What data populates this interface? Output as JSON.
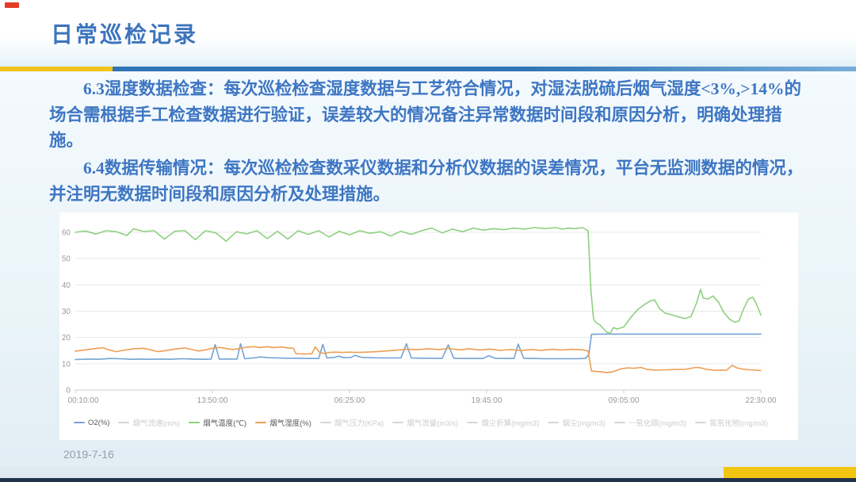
{
  "slide": {
    "title": "日常巡检记录",
    "paragraphs": [
      "6.3湿度数据检查：每次巡检检查湿度数据与工艺符合情况，对湿法脱硫后烟气湿度<3%,>14%的场合需根据手工检查数据进行验证，误差较大的情况备注异常数据时间段和原因分析，明确处理措施。",
      "6.4数据传输情况：每次巡检检查数采仪数据和分析仪数据的误差情况，平台无监测数据的情况，并注明无数据时间段和原因分析及处理措施。"
    ],
    "date": "2019-7-16",
    "accent_colors": {
      "title_blue": "#3c74bd",
      "divider_yellow": "#f0c419",
      "divider_blue": "#2f74b5",
      "footer_navy": "#22334d",
      "footer_yellow": "#f2c511"
    }
  },
  "chart_data": {
    "type": "line",
    "title": "",
    "xlabel": "",
    "ylabel": "",
    "ylim": [
      0,
      65
    ],
    "yticks": [
      0,
      10,
      20,
      30,
      40,
      50,
      60
    ],
    "grid": true,
    "legend_position": "bottom",
    "xticks": [
      {
        "frac": 0,
        "label": "00:10:00"
      },
      {
        "frac": 20,
        "label": "13:50:00"
      },
      {
        "frac": 40,
        "label": "06:25:00"
      },
      {
        "frac": 60,
        "label": "19:45:00"
      },
      {
        "frac": 80,
        "label": "09:05:00"
      },
      {
        "frac": 100,
        "label": "22:30:00"
      }
    ],
    "series": [
      {
        "id": "o2",
        "name": "O2(%)",
        "color": "#74a3d4",
        "points": [
          [
            0,
            11.6
          ],
          [
            2,
            11.8
          ],
          [
            3.5,
            11.7
          ],
          [
            5,
            12.0
          ],
          [
            6.5,
            11.9
          ],
          [
            8,
            11.7
          ],
          [
            9.5,
            11.8
          ],
          [
            11,
            11.7
          ],
          [
            12.5,
            11.8
          ],
          [
            14,
            11.7
          ],
          [
            15.5,
            11.9
          ],
          [
            17,
            11.8
          ],
          [
            18.5,
            11.7
          ],
          [
            19.8,
            11.8
          ],
          [
            20.4,
            17.3
          ],
          [
            21,
            11.8
          ],
          [
            22.5,
            11.8
          ],
          [
            23.6,
            11.8
          ],
          [
            24.1,
            17.6
          ],
          [
            24.7,
            11.9
          ],
          [
            26,
            12.2
          ],
          [
            27,
            12.6
          ],
          [
            28,
            12.3
          ],
          [
            29.5,
            12.2
          ],
          [
            31,
            12.1
          ],
          [
            32.5,
            12.1
          ],
          [
            34,
            12.0
          ],
          [
            35.5,
            12.0
          ],
          [
            36.1,
            17.4
          ],
          [
            36.7,
            12.2
          ],
          [
            37.8,
            12.4
          ],
          [
            38.4,
            12.9
          ],
          [
            39.2,
            12.3
          ],
          [
            40.2,
            12.4
          ],
          [
            40.8,
            13.2
          ],
          [
            41.8,
            12.4
          ],
          [
            43,
            12.3
          ],
          [
            44.5,
            12.2
          ],
          [
            46,
            12.2
          ],
          [
            47.5,
            12.2
          ],
          [
            48.3,
            17.6
          ],
          [
            49,
            12.2
          ],
          [
            50.5,
            12.1
          ],
          [
            52,
            12.1
          ],
          [
            53.5,
            12.0
          ],
          [
            54.4,
            17.2
          ],
          [
            55.2,
            12.1
          ],
          [
            56.5,
            12.0
          ],
          [
            58,
            12.0
          ],
          [
            59.5,
            12.0
          ],
          [
            60.3,
            13.1
          ],
          [
            61.2,
            12.1
          ],
          [
            62.5,
            12.0
          ],
          [
            64,
            12.0
          ],
          [
            64.6,
            17.5
          ],
          [
            65.4,
            12.1
          ],
          [
            67,
            12.0
          ],
          [
            68.5,
            11.9
          ],
          [
            70,
            11.9
          ],
          [
            71.5,
            11.9
          ],
          [
            73,
            11.9
          ],
          [
            74.4,
            12.0
          ],
          [
            74.9,
            13.5
          ],
          [
            75.3,
            21.2
          ],
          [
            77,
            21.3
          ],
          [
            80,
            21.3
          ],
          [
            85,
            21.3
          ],
          [
            90,
            21.3
          ],
          [
            95,
            21.3
          ],
          [
            100,
            21.3
          ]
        ]
      },
      {
        "id": "temp",
        "name": "烟气温度(℃)",
        "color": "#8ed081",
        "points": [
          [
            0,
            60
          ],
          [
            1.5,
            60.5
          ],
          [
            3,
            59.3
          ],
          [
            4.5,
            60.6
          ],
          [
            6,
            60.2
          ],
          [
            7.5,
            58.8
          ],
          [
            8.5,
            61.3
          ],
          [
            10,
            60.3
          ],
          [
            11.5,
            60.6
          ],
          [
            13,
            57.4
          ],
          [
            14.5,
            60.4
          ],
          [
            16,
            60.6
          ],
          [
            17.5,
            57.2
          ],
          [
            19,
            60.6
          ],
          [
            20.5,
            59.8
          ],
          [
            22,
            56.6
          ],
          [
            23.5,
            60.2
          ],
          [
            25,
            59.4
          ],
          [
            26.5,
            60.6
          ],
          [
            28,
            57.6
          ],
          [
            29.5,
            60.4
          ],
          [
            31,
            57.4
          ],
          [
            32.5,
            60.6
          ],
          [
            34,
            59.2
          ],
          [
            35.5,
            60.6
          ],
          [
            37,
            58.2
          ],
          [
            38.5,
            60.4
          ],
          [
            40,
            59.0
          ],
          [
            41.5,
            60.6
          ],
          [
            43,
            59.6
          ],
          [
            44.5,
            60.2
          ],
          [
            46,
            58.6
          ],
          [
            47.5,
            60.4
          ],
          [
            49,
            59.2
          ],
          [
            50.5,
            60.6
          ],
          [
            52,
            61.6
          ],
          [
            53.5,
            59.8
          ],
          [
            55,
            61.2
          ],
          [
            56.5,
            60.2
          ],
          [
            58,
            61.6
          ],
          [
            59.5,
            60.8
          ],
          [
            61,
            61.4
          ],
          [
            62.5,
            61.0
          ],
          [
            64,
            61.6
          ],
          [
            65.5,
            61.2
          ],
          [
            67,
            61.8
          ],
          [
            68.5,
            61.4
          ],
          [
            70,
            61.8
          ],
          [
            71,
            61.2
          ],
          [
            72,
            61.6
          ],
          [
            73,
            61.4
          ],
          [
            74,
            61.8
          ],
          [
            74.8,
            60.5
          ],
          [
            75.2,
            38
          ],
          [
            75.6,
            27
          ],
          [
            76,
            25.5
          ],
          [
            76.5,
            24.8
          ],
          [
            77.5,
            22
          ],
          [
            78,
            21.5
          ],
          [
            78.5,
            23.8
          ],
          [
            79,
            23.2
          ],
          [
            80,
            24
          ],
          [
            81,
            27.5
          ],
          [
            82,
            30.5
          ],
          [
            83,
            32.5
          ],
          [
            83.8,
            33.8
          ],
          [
            84.5,
            34.3
          ],
          [
            85.2,
            31
          ],
          [
            86,
            29.3
          ],
          [
            87,
            28.6
          ],
          [
            88,
            27.8
          ],
          [
            89,
            27.2
          ],
          [
            89.8,
            28
          ],
          [
            90.6,
            33
          ],
          [
            91.2,
            38.3
          ],
          [
            91.6,
            35
          ],
          [
            92.3,
            34.6
          ],
          [
            93,
            35.8
          ],
          [
            93.8,
            33.5
          ],
          [
            94.6,
            29.5
          ],
          [
            95.4,
            27
          ],
          [
            96.2,
            25.8
          ],
          [
            96.8,
            26.3
          ],
          [
            97.5,
            31
          ],
          [
            98.2,
            34.6
          ],
          [
            98.8,
            35.3
          ],
          [
            99.3,
            33
          ],
          [
            99.7,
            30.5
          ],
          [
            100,
            28.5
          ]
        ]
      },
      {
        "id": "humidity",
        "name": "烟气湿度(%)",
        "color": "#ec9f54",
        "points": [
          [
            0,
            14.8
          ],
          [
            1.5,
            15.3
          ],
          [
            3,
            15.8
          ],
          [
            4,
            16.1
          ],
          [
            5,
            15.2
          ],
          [
            6,
            14.6
          ],
          [
            7,
            15.1
          ],
          [
            8.5,
            15.7
          ],
          [
            10,
            15.9
          ],
          [
            11,
            15.3
          ],
          [
            12,
            14.6
          ],
          [
            13,
            14.9
          ],
          [
            14.5,
            15.6
          ],
          [
            16,
            16.0
          ],
          [
            17,
            15.4
          ],
          [
            18,
            14.8
          ],
          [
            19,
            15.3
          ],
          [
            20,
            15.9
          ],
          [
            21,
            16.2
          ],
          [
            22,
            15.8
          ],
          [
            23,
            15.4
          ],
          [
            24,
            15.8
          ],
          [
            25,
            16.3
          ],
          [
            26,
            16.5
          ],
          [
            27,
            16.2
          ],
          [
            28,
            16.5
          ],
          [
            29,
            16.1
          ],
          [
            30,
            16.4
          ],
          [
            31,
            16.0
          ],
          [
            31.8,
            15.9
          ],
          [
            32.2,
            13.8
          ],
          [
            33.5,
            13.7
          ],
          [
            34.5,
            13.8
          ],
          [
            35,
            16.4
          ],
          [
            35.6,
            14.4
          ],
          [
            36.2,
            13.9
          ],
          [
            37,
            14.3
          ],
          [
            38,
            14.4
          ],
          [
            39,
            14.3
          ],
          [
            40,
            14.4
          ],
          [
            41,
            14.3
          ],
          [
            42.5,
            14.4
          ],
          [
            44,
            14.6
          ],
          [
            45.5,
            14.9
          ],
          [
            47,
            15.2
          ],
          [
            48.5,
            15.5
          ],
          [
            50,
            15.4
          ],
          [
            51.5,
            15.7
          ],
          [
            53,
            15.4
          ],
          [
            54.5,
            15.8
          ],
          [
            56,
            15.3
          ],
          [
            57.5,
            15.7
          ],
          [
            59,
            15.2
          ],
          [
            60.5,
            15.6
          ],
          [
            62,
            15.1
          ],
          [
            63.5,
            15.4
          ],
          [
            65,
            15.0
          ],
          [
            66.5,
            15.4
          ],
          [
            68,
            15.1
          ],
          [
            69.5,
            15.5
          ],
          [
            71,
            15.2
          ],
          [
            72.5,
            15.5
          ],
          [
            74,
            15.3
          ],
          [
            74.8,
            14.8
          ],
          [
            75.3,
            7.2
          ],
          [
            76.5,
            7.0
          ],
          [
            77.5,
            6.6
          ],
          [
            78.5,
            7.0
          ],
          [
            79.5,
            8.0
          ],
          [
            80.5,
            8.4
          ],
          [
            81.5,
            8.3
          ],
          [
            82.5,
            8.6
          ],
          [
            83.5,
            7.8
          ],
          [
            84.5,
            7.6
          ],
          [
            86,
            7.7
          ],
          [
            87.5,
            7.8
          ],
          [
            89,
            7.9
          ],
          [
            90.5,
            8.6
          ],
          [
            91.3,
            8.4
          ],
          [
            92,
            7.9
          ],
          [
            93,
            7.6
          ],
          [
            94,
            7.5
          ],
          [
            95,
            7.6
          ],
          [
            95.8,
            9.4
          ],
          [
            96.5,
            8.4
          ],
          [
            97.5,
            7.9
          ],
          [
            98.5,
            7.7
          ],
          [
            99.3,
            7.6
          ],
          [
            100,
            7.4
          ]
        ]
      }
    ],
    "legend": [
      {
        "label": "O2(%)",
        "color": "#74a3d4",
        "active": true
      },
      {
        "label": "烟气流速(m/s)",
        "color": "#d7d7d7",
        "active": false
      },
      {
        "label": "烟气温度(℃)",
        "color": "#8ed081",
        "active": true
      },
      {
        "label": "烟气湿度(%)",
        "color": "#ec9f54",
        "active": true
      },
      {
        "label": "烟气压力(KPa)",
        "color": "#d7d7d7",
        "active": false
      },
      {
        "label": "烟气流量(m3/s)",
        "color": "#d7d7d7",
        "active": false
      },
      {
        "label": "烟尘折算(mg/m3)",
        "color": "#d7d7d7",
        "active": false
      },
      {
        "label": "烟尘(mg/m3)",
        "color": "#d7d7d7",
        "active": false
      },
      {
        "label": "一氧化碳(mg/m3)",
        "color": "#d7d7d7",
        "active": false
      },
      {
        "label": "氮氧化物(mg/m3)",
        "color": "#d7d7d7",
        "active": false
      }
    ]
  }
}
